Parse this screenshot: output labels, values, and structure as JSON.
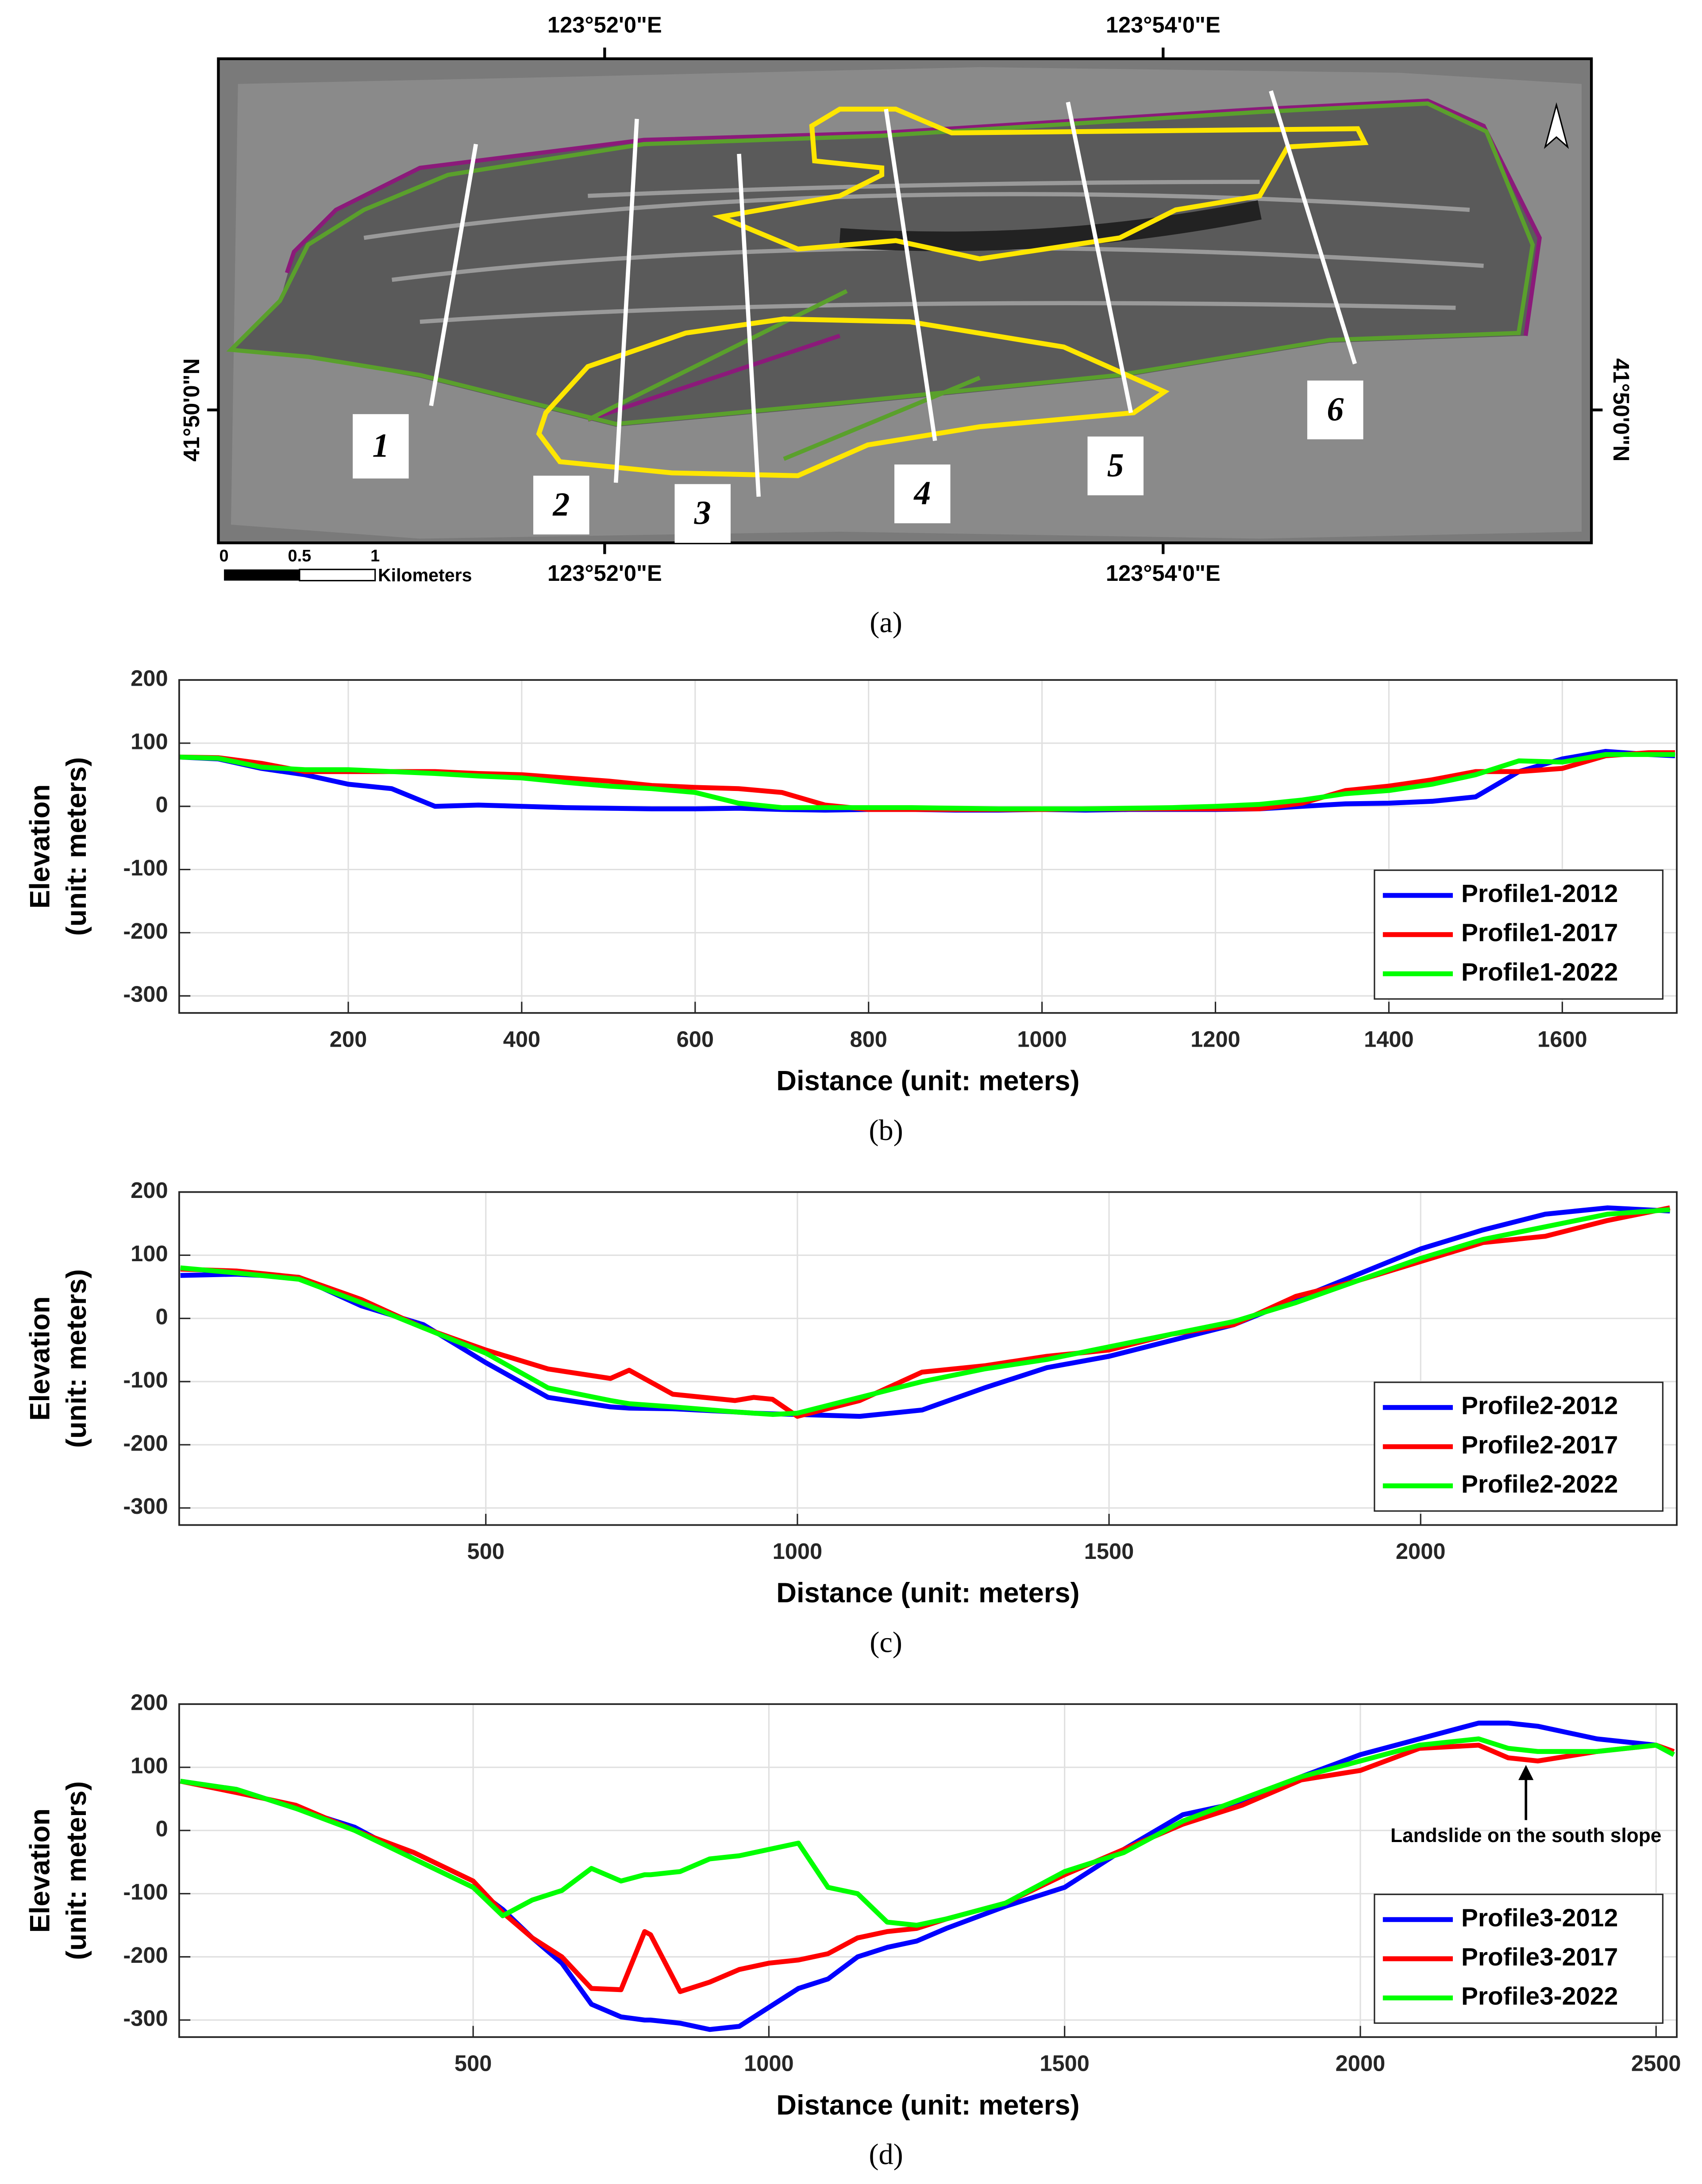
{
  "map": {
    "caption": "(a)",
    "top_labels": [
      "123°52'0\"E",
      "123°54'0\"E"
    ],
    "bottom_labels": [
      "123°52'0\"E",
      "123°54'0\"E"
    ],
    "left_label": "41°50'0\"N",
    "right_label": "41°50'0\"N",
    "profile_labels": [
      "1",
      "2",
      "3",
      "4",
      "5",
      "6"
    ],
    "scale_labels": [
      "0",
      "0.5",
      "1"
    ],
    "scale_unit": "Kilometers"
  },
  "chart_data": [
    {
      "type": "line",
      "caption": "(b)",
      "xlabel": "Distance (unit: meters)",
      "ylabel": [
        "Elevation",
        "(unit: meters)"
      ],
      "xlim": [
        5,
        1732
      ],
      "ylim": [
        -327,
        200
      ],
      "xticks": [
        200,
        400,
        600,
        800,
        1000,
        1200,
        1400,
        1600
      ],
      "yticks": [
        200,
        100,
        0,
        -100,
        -200,
        -300
      ],
      "grid": true,
      "legend": "lower right",
      "x": [
        5,
        50,
        100,
        150,
        200,
        250,
        300,
        350,
        400,
        450,
        500,
        550,
        600,
        650,
        700,
        750,
        800,
        850,
        900,
        950,
        1000,
        1050,
        1100,
        1150,
        1200,
        1250,
        1300,
        1350,
        1400,
        1450,
        1500,
        1550,
        1600,
        1650,
        1700,
        1730
      ],
      "series": [
        {
          "name": "Profile1-2012",
          "color": "#0000ff",
          "values": [
            78,
            75,
            60,
            50,
            35,
            28,
            0,
            2,
            0,
            -2,
            -3,
            -4,
            -4,
            -3,
            -5,
            -6,
            -5,
            -5,
            -6,
            -6,
            -5,
            -6,
            -5,
            -5,
            -5,
            -4,
            0,
            4,
            5,
            8,
            15,
            55,
            75,
            87,
            82,
            80
          ]
        },
        {
          "name": "Profile1-2017",
          "color": "#ff0000",
          "values": [
            78,
            77,
            68,
            55,
            55,
            55,
            55,
            52,
            50,
            45,
            40,
            33,
            30,
            28,
            22,
            2,
            -5,
            -5,
            -5,
            -5,
            -5,
            -4,
            -4,
            -4,
            -4,
            -4,
            5,
            25,
            32,
            42,
            55,
            55,
            60,
            80,
            85,
            85
          ]
        },
        {
          "name": "Profile1-2022",
          "color": "#00ff00",
          "values": [
            78,
            76,
            62,
            58,
            58,
            55,
            52,
            48,
            45,
            38,
            32,
            28,
            22,
            5,
            -2,
            -2,
            -2,
            -2,
            -3,
            -4,
            -4,
            -4,
            -3,
            -2,
            0,
            3,
            10,
            20,
            25,
            35,
            50,
            72,
            70,
            82,
            82,
            82
          ]
        }
      ]
    },
    {
      "type": "line",
      "caption": "(c)",
      "xlabel": "Distance (unit: meters)",
      "ylabel": [
        "Elevation",
        "(unit: meters)"
      ],
      "xlim": [
        8,
        2411
      ],
      "ylim": [
        -327,
        200
      ],
      "xticks": [
        500,
        1000,
        1500,
        2000
      ],
      "yticks": [
        200,
        100,
        0,
        -100,
        -200,
        -300
      ],
      "grid": true,
      "legend": "lower right",
      "x": [
        10,
        100,
        200,
        300,
        400,
        500,
        600,
        700,
        730,
        800,
        900,
        930,
        960,
        1000,
        1100,
        1200,
        1300,
        1400,
        1500,
        1600,
        1700,
        1800,
        1900,
        2000,
        2100,
        2200,
        2300,
        2400
      ],
      "series": [
        {
          "name": "Profile2-2012",
          "color": "#0000ff",
          "values": [
            68,
            70,
            65,
            20,
            -10,
            -70,
            -125,
            -140,
            -142,
            -143,
            -148,
            -150,
            -151,
            -152,
            -155,
            -145,
            -110,
            -78,
            -60,
            -35,
            -10,
            30,
            70,
            110,
            140,
            165,
            175,
            170
          ]
        },
        {
          "name": "Profile2-2017",
          "color": "#ff0000",
          "values": [
            78,
            75,
            65,
            30,
            -15,
            -50,
            -80,
            -95,
            -82,
            -120,
            -130,
            -125,
            -128,
            -155,
            -130,
            -85,
            -75,
            -60,
            -50,
            -25,
            -10,
            35,
            60,
            90,
            120,
            130,
            155,
            175
          ]
        },
        {
          "name": "Profile2-2022",
          "color": "#00ff00",
          "values": [
            80,
            72,
            62,
            25,
            -15,
            -55,
            -110,
            -130,
            -135,
            -140,
            -148,
            -150,
            -152,
            -150,
            -125,
            -100,
            -80,
            -65,
            -45,
            -25,
            -5,
            25,
            60,
            95,
            125,
            145,
            165,
            172
          ]
        }
      ]
    },
    {
      "type": "line",
      "caption": "(d)",
      "xlabel": "Distance (unit: meters)",
      "ylabel": [
        "Elevation",
        "(unit: meters)"
      ],
      "xlim": [
        3,
        2535
      ],
      "ylim": [
        -327,
        200
      ],
      "xticks": [
        500,
        1000,
        1500,
        2000,
        2500
      ],
      "yticks": [
        200,
        100,
        0,
        -100,
        -200,
        -300
      ],
      "grid": true,
      "legend": "lower right",
      "annotations": [
        {
          "text": "Landslide on the south slope",
          "x": 2280,
          "y": 105
        }
      ],
      "x": [
        5,
        100,
        200,
        300,
        400,
        500,
        550,
        600,
        650,
        700,
        750,
        790,
        800,
        850,
        900,
        950,
        1000,
        1050,
        1100,
        1150,
        1200,
        1250,
        1300,
        1400,
        1500,
        1600,
        1700,
        1800,
        1900,
        2000,
        2100,
        2200,
        2250,
        2300,
        2400,
        2500,
        2530
      ],
      "series": [
        {
          "name": "Profile3-2012",
          "color": "#0000ff",
          "values": [
            78,
            65,
            35,
            5,
            -45,
            -90,
            -125,
            -170,
            -210,
            -275,
            -295,
            -300,
            -300,
            -305,
            -315,
            -310,
            -280,
            -250,
            -235,
            -200,
            -185,
            -175,
            -155,
            -120,
            -90,
            -30,
            25,
            45,
            85,
            120,
            145,
            170,
            170,
            165,
            145,
            135,
            120
          ]
        },
        {
          "name": "Profile3-2017",
          "color": "#ff0000",
          "values": [
            78,
            60,
            40,
            0,
            -35,
            -80,
            -130,
            -170,
            -200,
            -250,
            -252,
            -160,
            -165,
            -255,
            -240,
            -220,
            -210,
            -205,
            -195,
            -170,
            -160,
            -155,
            -140,
            -115,
            -70,
            -30,
            10,
            40,
            80,
            95,
            130,
            135,
            115,
            110,
            125,
            135,
            125
          ]
        },
        {
          "name": "Profile3-2022",
          "color": "#00ff00",
          "values": [
            78,
            65,
            35,
            0,
            -45,
            -90,
            -135,
            -110,
            -95,
            -60,
            -80,
            -70,
            -70,
            -65,
            -45,
            -40,
            -30,
            -20,
            -90,
            -100,
            -145,
            -150,
            -140,
            -115,
            -65,
            -35,
            15,
            50,
            85,
            110,
            135,
            145,
            130,
            125,
            125,
            135,
            120
          ]
        }
      ]
    }
  ]
}
